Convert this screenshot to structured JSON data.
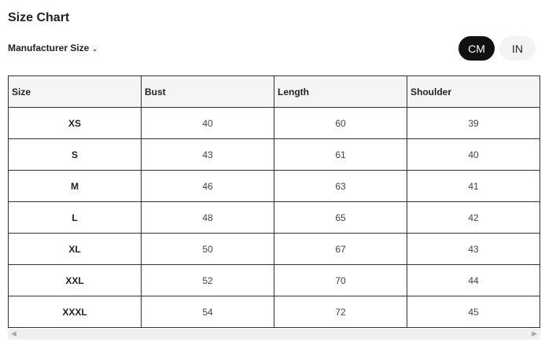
{
  "title": "Size Chart",
  "size_selector": {
    "label": "Manufacturer Size",
    "icon": "chevron-down-icon"
  },
  "units": [
    {
      "label": "CM",
      "active": true
    },
    {
      "label": "IN",
      "active": false
    }
  ],
  "table": {
    "headers": [
      "Size",
      "Bust",
      "Length",
      "Shoulder"
    ],
    "rows": [
      [
        "XS",
        "40",
        "60",
        "39"
      ],
      [
        "S",
        "43",
        "61",
        "40"
      ],
      [
        "M",
        "46",
        "63",
        "41"
      ],
      [
        "L",
        "48",
        "65",
        "42"
      ],
      [
        "XL",
        "50",
        "67",
        "43"
      ],
      [
        "XXL",
        "52",
        "70",
        "44"
      ],
      [
        "XXXL",
        "54",
        "72",
        "45"
      ]
    ]
  }
}
